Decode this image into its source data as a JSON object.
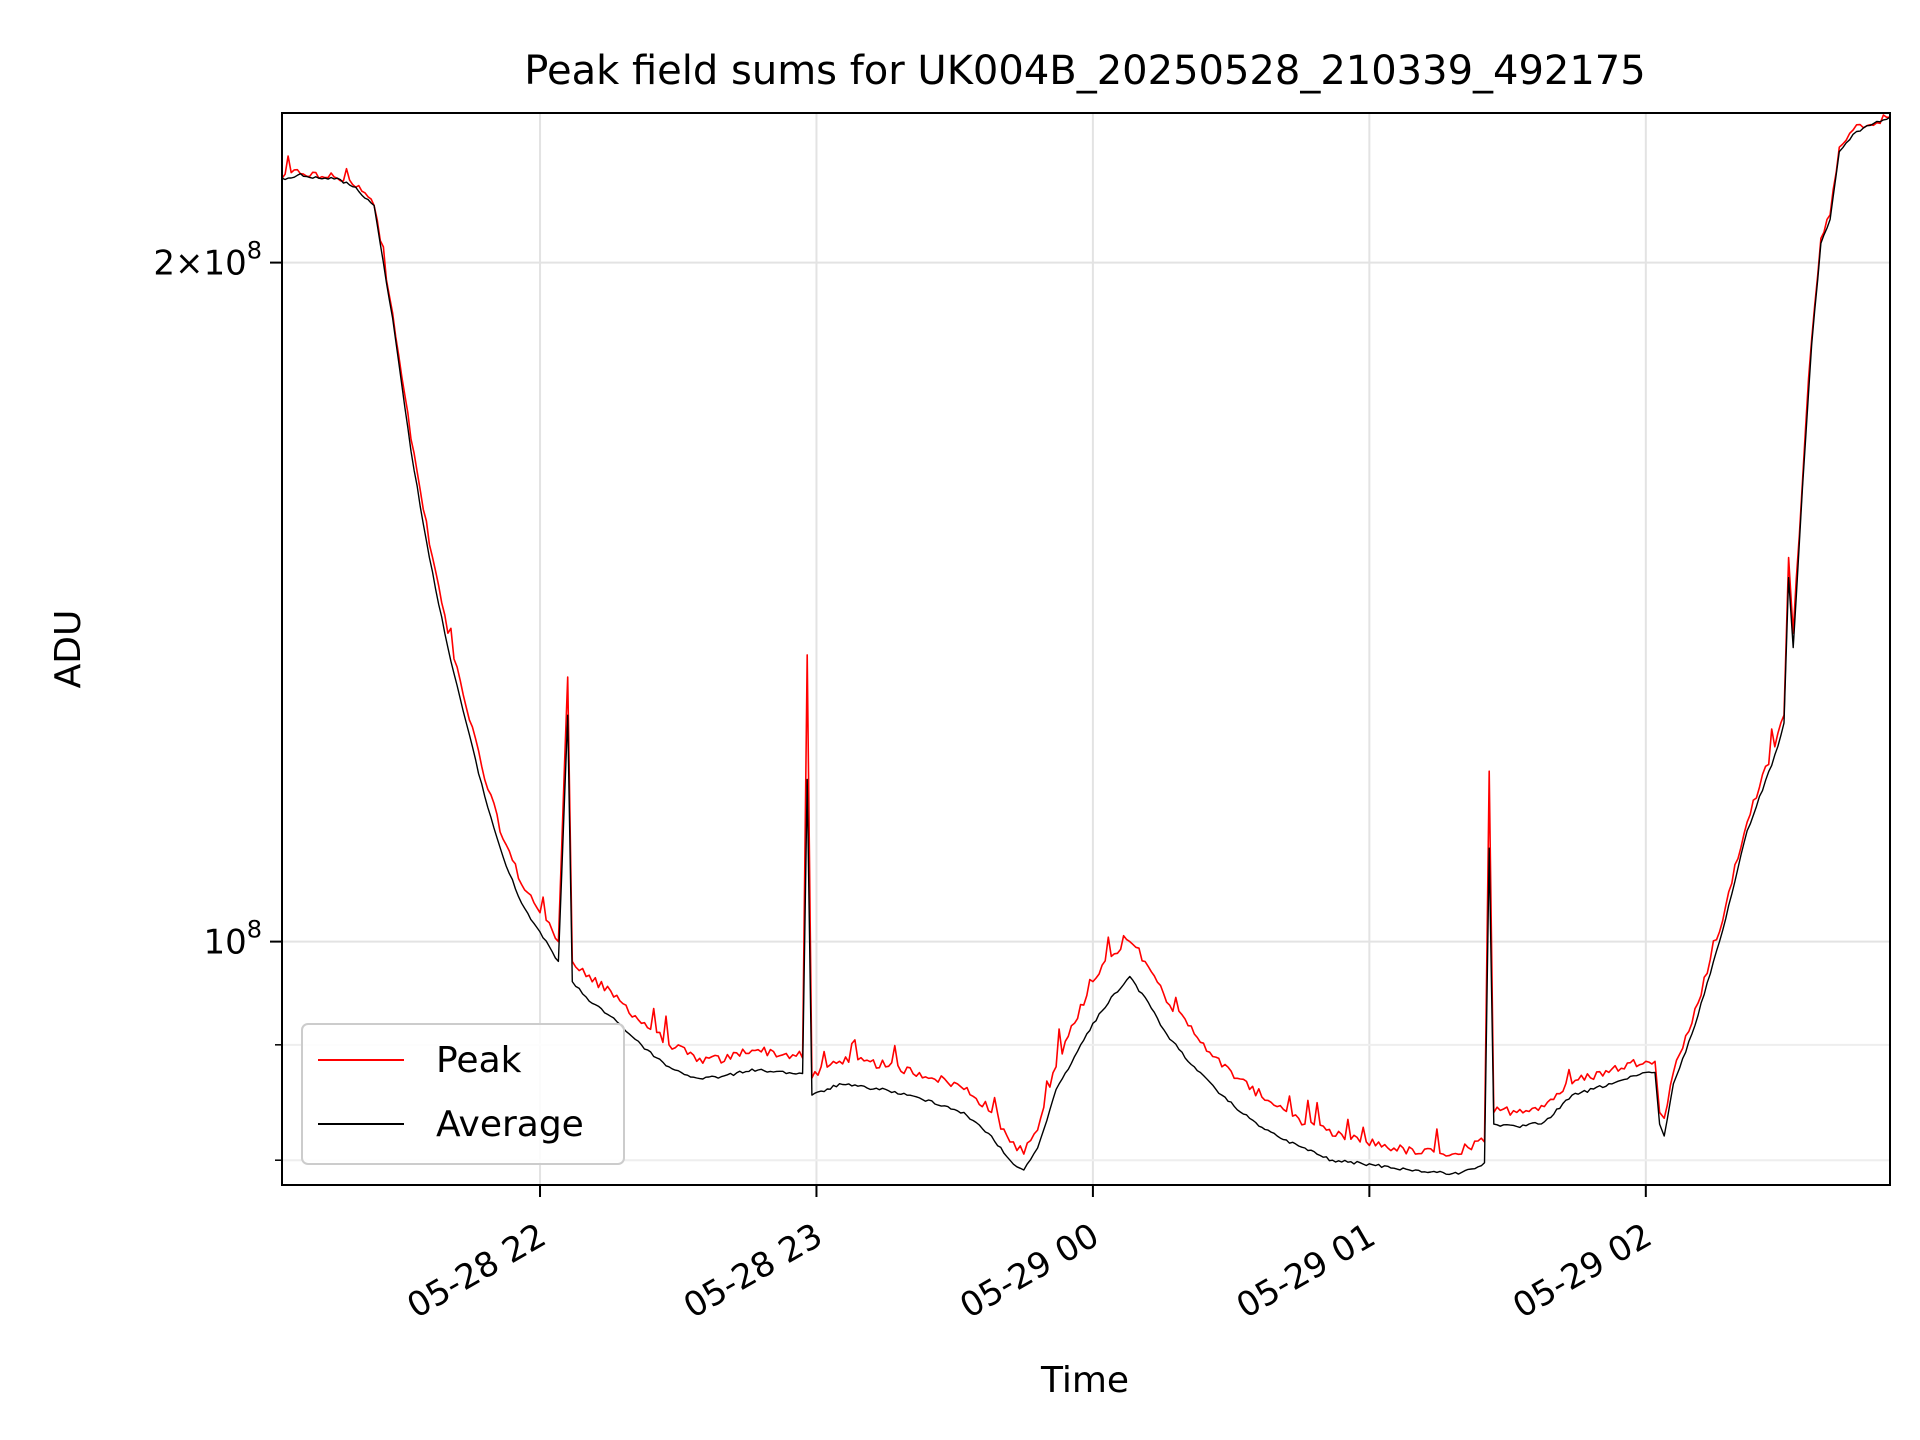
{
  "chart_data": {
    "type": "line",
    "title": "Peak field sums for UK004B_20250528_210339_492175",
    "xlabel": "Time",
    "ylabel": "ADU",
    "y_scale": "log",
    "ylim": [
      78000000,
      233000000
    ],
    "xlim": [
      "2025-05-28 21:04",
      "2025-05-29 02:53"
    ],
    "grid": true,
    "legend_position": "lower left",
    "x_ticks": [
      {
        "t": "2025-05-28 22:00",
        "label": "05-28 22"
      },
      {
        "t": "2025-05-28 23:00",
        "label": "05-28 23"
      },
      {
        "t": "2025-05-29 00:00",
        "label": "05-29 00"
      },
      {
        "t": "2025-05-29 01:00",
        "label": "05-29 01"
      },
      {
        "t": "2025-05-29 02:00",
        "label": "05-29 02"
      }
    ],
    "y_ticks": [
      {
        "value": 100000000,
        "label_base": "10",
        "label_exp": "8",
        "label_coef": ""
      },
      {
        "value": 200000000,
        "label_base": "10",
        "label_exp": "8",
        "label_coef": "2×"
      }
    ],
    "y_minor_ticks": [
      80000000,
      90000000
    ],
    "series": [
      {
        "name": "Peak",
        "color": "#ff0000",
        "points": [
          [
            "2025-05-28 21:04",
            218000000
          ],
          [
            "2025-05-28 21:08",
            219000000
          ],
          [
            "2025-05-28 21:12",
            218000000
          ],
          [
            "2025-05-28 21:16",
            218000000
          ],
          [
            "2025-05-28 21:20",
            216000000
          ],
          [
            "2025-05-28 21:24",
            212000000
          ],
          [
            "2025-05-28 21:28",
            190000000
          ],
          [
            "2025-05-28 21:32",
            167000000
          ],
          [
            "2025-05-28 21:36",
            150000000
          ],
          [
            "2025-05-28 21:40",
            137000000
          ],
          [
            "2025-05-28 21:44",
            127000000
          ],
          [
            "2025-05-28 21:48",
            118000000
          ],
          [
            "2025-05-28 21:52",
            111000000
          ],
          [
            "2025-05-28 21:56",
            106000000
          ],
          [
            "2025-05-28 22:00",
            103000000
          ],
          [
            "2025-05-28 22:04",
            100000000
          ],
          [
            "2025-05-28 22:06",
            131000000
          ],
          [
            "2025-05-28 22:07",
            98000000
          ],
          [
            "2025-05-28 22:10",
            96500000
          ],
          [
            "2025-05-28 22:16",
            94500000
          ],
          [
            "2025-05-28 22:22",
            92000000
          ],
          [
            "2025-05-28 22:28",
            90000000
          ],
          [
            "2025-05-28 22:34",
            88500000
          ],
          [
            "2025-05-28 22:40",
            88500000
          ],
          [
            "2025-05-28 22:46",
            89500000
          ],
          [
            "2025-05-28 22:52",
            89000000
          ],
          [
            "2025-05-28 22:57",
            88800000
          ],
          [
            "2025-05-28 22:58",
            134000000
          ],
          [
            "2025-05-28 22:59",
            87000000
          ],
          [
            "2025-05-28 23:05",
            88500000
          ],
          [
            "2025-05-28 23:15",
            88000000
          ],
          [
            "2025-05-28 23:25",
            87000000
          ],
          [
            "2025-05-28 23:32",
            86000000
          ],
          [
            "2025-05-28 23:38",
            84000000
          ],
          [
            "2025-05-28 23:42",
            81500000
          ],
          [
            "2025-05-28 23:45",
            80500000
          ],
          [
            "2025-05-28 23:48",
            82500000
          ],
          [
            "2025-05-28 23:52",
            88000000
          ],
          [
            "2025-05-28 23:56",
            92000000
          ],
          [
            "2025-05-29 00:00",
            96000000
          ],
          [
            "2025-05-29 00:04",
            98500000
          ],
          [
            "2025-05-29 00:08",
            100000000
          ],
          [
            "2025-05-29 00:12",
            97500000
          ],
          [
            "2025-05-29 00:16",
            94000000
          ],
          [
            "2025-05-29 00:22",
            91000000
          ],
          [
            "2025-05-29 00:28",
            88000000
          ],
          [
            "2025-05-29 00:34",
            86000000
          ],
          [
            "2025-05-29 00:40",
            84500000
          ],
          [
            "2025-05-29 00:46",
            83000000
          ],
          [
            "2025-05-29 00:52",
            82000000
          ],
          [
            "2025-05-29 00:58",
            81500000
          ],
          [
            "2025-05-29 01:04",
            81000000
          ],
          [
            "2025-05-29 01:10",
            80500000
          ],
          [
            "2025-05-29 01:16",
            80500000
          ],
          [
            "2025-05-29 01:20",
            80500000
          ],
          [
            "2025-05-29 01:25",
            81500000
          ],
          [
            "2025-05-29 01:26",
            119000000
          ],
          [
            "2025-05-29 01:27",
            84000000
          ],
          [
            "2025-05-29 01:32",
            84000000
          ],
          [
            "2025-05-29 01:38",
            84500000
          ],
          [
            "2025-05-29 01:44",
            86500000
          ],
          [
            "2025-05-29 01:52",
            87500000
          ],
          [
            "2025-05-29 02:00",
            88500000
          ],
          [
            "2025-05-29 02:02",
            88500000
          ],
          [
            "2025-05-29 02:03",
            84000000
          ],
          [
            "2025-05-29 02:04",
            83500000
          ],
          [
            "2025-05-29 02:06",
            87500000
          ],
          [
            "2025-05-29 02:10",
            92000000
          ],
          [
            "2025-05-29 02:16",
            101000000
          ],
          [
            "2025-05-29 02:22",
            113000000
          ],
          [
            "2025-05-29 02:28",
            122000000
          ],
          [
            "2025-05-29 02:30",
            126000000
          ],
          [
            "2025-05-29 02:31",
            148000000
          ],
          [
            "2025-05-29 02:32",
            137000000
          ],
          [
            "2025-05-29 02:34",
            160000000
          ],
          [
            "2025-05-29 02:36",
            185000000
          ],
          [
            "2025-05-29 02:38",
            205000000
          ],
          [
            "2025-05-29 02:40",
            210000000
          ],
          [
            "2025-05-29 02:42",
            225000000
          ],
          [
            "2025-05-29 02:45",
            229000000
          ],
          [
            "2025-05-29 02:48",
            230000000
          ],
          [
            "2025-05-29 02:53",
            232000000
          ]
        ]
      },
      {
        "name": "Average",
        "color": "#000000",
        "points": [
          [
            "2025-05-28 21:04",
            218000000
          ],
          [
            "2025-05-28 21:08",
            219000000
          ],
          [
            "2025-05-28 21:12",
            218000000
          ],
          [
            "2025-05-28 21:16",
            218000000
          ],
          [
            "2025-05-28 21:20",
            216000000
          ],
          [
            "2025-05-28 21:24",
            212000000
          ],
          [
            "2025-05-28 21:28",
            189000000
          ],
          [
            "2025-05-28 21:32",
            165000000
          ],
          [
            "2025-05-28 21:36",
            148000000
          ],
          [
            "2025-05-28 21:40",
            135000000
          ],
          [
            "2025-05-28 21:44",
            125000000
          ],
          [
            "2025-05-28 21:48",
            116000000
          ],
          [
            "2025-05-28 21:52",
            109000000
          ],
          [
            "2025-05-28 21:56",
            104000000
          ],
          [
            "2025-05-28 22:00",
            101000000
          ],
          [
            "2025-05-28 22:04",
            98000000
          ],
          [
            "2025-05-28 22:06",
            126000000
          ],
          [
            "2025-05-28 22:07",
            96000000
          ],
          [
            "2025-05-28 22:10",
            94500000
          ],
          [
            "2025-05-28 22:16",
            92500000
          ],
          [
            "2025-05-28 22:22",
            90000000
          ],
          [
            "2025-05-28 22:28",
            88000000
          ],
          [
            "2025-05-28 22:34",
            87000000
          ],
          [
            "2025-05-28 22:40",
            87200000
          ],
          [
            "2025-05-28 22:46",
            87800000
          ],
          [
            "2025-05-28 22:52",
            87600000
          ],
          [
            "2025-05-28 22:57",
            87400000
          ],
          [
            "2025-05-28 22:58",
            118000000
          ],
          [
            "2025-05-28 22:59",
            85500000
          ],
          [
            "2025-05-28 23:05",
            86500000
          ],
          [
            "2025-05-28 23:15",
            86000000
          ],
          [
            "2025-05-28 23:25",
            85000000
          ],
          [
            "2025-05-28 23:32",
            84000000
          ],
          [
            "2025-05-28 23:38",
            82000000
          ],
          [
            "2025-05-28 23:42",
            80000000
          ],
          [
            "2025-05-28 23:45",
            79200000
          ],
          [
            "2025-05-28 23:48",
            81000000
          ],
          [
            "2025-05-28 23:52",
            86000000
          ],
          [
            "2025-05-29 00:00",
            92000000
          ],
          [
            "2025-05-29 00:04",
            94500000
          ],
          [
            "2025-05-29 00:08",
            96500000
          ],
          [
            "2025-05-29 00:12",
            94000000
          ],
          [
            "2025-05-29 00:16",
            91000000
          ],
          [
            "2025-05-29 00:22",
            88000000
          ],
          [
            "2025-05-29 00:28",
            85500000
          ],
          [
            "2025-05-29 00:34",
            83500000
          ],
          [
            "2025-05-29 00:40",
            82000000
          ],
          [
            "2025-05-29 00:46",
            81000000
          ],
          [
            "2025-05-29 00:52",
            80000000
          ],
          [
            "2025-05-29 00:58",
            79800000
          ],
          [
            "2025-05-29 01:04",
            79500000
          ],
          [
            "2025-05-29 01:10",
            79200000
          ],
          [
            "2025-05-29 01:16",
            79000000
          ],
          [
            "2025-05-29 01:20",
            79000000
          ],
          [
            "2025-05-29 01:25",
            79800000
          ],
          [
            "2025-05-29 01:26",
            110000000
          ],
          [
            "2025-05-29 01:27",
            83000000
          ],
          [
            "2025-05-29 01:32",
            82800000
          ],
          [
            "2025-05-29 01:38",
            83200000
          ],
          [
            "2025-05-29 01:44",
            85500000
          ],
          [
            "2025-05-29 01:52",
            86500000
          ],
          [
            "2025-05-29 02:00",
            87500000
          ],
          [
            "2025-05-29 02:02",
            87500000
          ],
          [
            "2025-05-29 02:03",
            83000000
          ],
          [
            "2025-05-29 02:04",
            82000000
          ],
          [
            "2025-05-29 02:06",
            86500000
          ],
          [
            "2025-05-29 02:10",
            91000000
          ],
          [
            "2025-05-29 02:16",
            100000000
          ],
          [
            "2025-05-29 02:22",
            112000000
          ],
          [
            "2025-05-29 02:28",
            121000000
          ],
          [
            "2025-05-29 02:30",
            125000000
          ],
          [
            "2025-05-29 02:31",
            145000000
          ],
          [
            "2025-05-29 02:32",
            135000000
          ],
          [
            "2025-05-29 02:34",
            159000000
          ],
          [
            "2025-05-29 02:36",
            184000000
          ],
          [
            "2025-05-29 02:38",
            204000000
          ],
          [
            "2025-05-29 02:40",
            209000000
          ],
          [
            "2025-05-29 02:42",
            224000000
          ],
          [
            "2025-05-29 02:45",
            228000000
          ],
          [
            "2025-05-29 02:48",
            230000000
          ],
          [
            "2025-05-29 02:53",
            232000000
          ]
        ]
      }
    ]
  }
}
